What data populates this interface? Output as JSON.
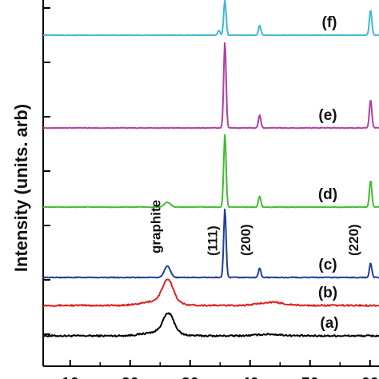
{
  "chart_data": {
    "type": "line",
    "title": "",
    "ylabel": "Intensity (units. arb)",
    "xlabel": "",
    "xlim": [
      5.5,
      61.5
    ],
    "x_ticks": [
      10,
      20,
      30,
      40,
      50,
      60
    ],
    "x_tick_labels": [
      "10",
      "20",
      "30",
      "40",
      "50",
      "60"
    ],
    "grid": false,
    "series": [
      {
        "name": "(a)",
        "color": "#000000",
        "noise": 2,
        "peaks": [
          {
            "x": 26.4,
            "h": 24,
            "w": 0.9
          },
          {
            "x": 25.0,
            "h": 5,
            "w": 2.5
          },
          {
            "x": 43.2,
            "h": 2,
            "w": 2.0
          }
        ]
      },
      {
        "name": "(b)",
        "color": "#e02020",
        "noise": 1.8,
        "peaks": [
          {
            "x": 26.3,
            "h": 27,
            "w": 0.9
          },
          {
            "x": 25.0,
            "h": 6,
            "w": 2.5
          },
          {
            "x": 43.5,
            "h": 4,
            "w": 2.0
          }
        ]
      },
      {
        "name": "(c)",
        "color": "#22409a",
        "noise": 1,
        "peaks": [
          {
            "x": 26.2,
            "h": 14,
            "w": 0.5
          },
          {
            "x": 35.8,
            "h": 86,
            "w": 0.2
          },
          {
            "x": 41.6,
            "h": 12,
            "w": 0.2
          },
          {
            "x": 60.1,
            "h": 18,
            "w": 0.2
          }
        ]
      },
      {
        "name": "(d)",
        "color": "#44bb33",
        "noise": 0.8,
        "peaks": [
          {
            "x": 26.2,
            "h": 6,
            "w": 0.5
          },
          {
            "x": 35.8,
            "h": 92,
            "w": 0.2
          },
          {
            "x": 41.6,
            "h": 14,
            "w": 0.2
          },
          {
            "x": 60.1,
            "h": 34,
            "w": 0.2
          }
        ]
      },
      {
        "name": "(e)",
        "color": "#b040a8",
        "noise": 0.8,
        "peaks": [
          {
            "x": 35.8,
            "h": 108,
            "w": 0.2
          },
          {
            "x": 41.6,
            "h": 16,
            "w": 0.2
          },
          {
            "x": 60.1,
            "h": 36,
            "w": 0.2
          }
        ]
      },
      {
        "name": "(f)",
        "color": "#40b8d8",
        "noise": 0.6,
        "peaks": [
          {
            "x": 35.8,
            "h": 44,
            "w": 0.2
          },
          {
            "x": 34.8,
            "h": 6,
            "w": 0.2
          },
          {
            "x": 41.6,
            "h": 12,
            "w": 0.2
          },
          {
            "x": 60.1,
            "h": 32,
            "w": 0.2
          }
        ]
      }
    ],
    "annotations": [
      {
        "text": "graphite",
        "x": 25.0
      },
      {
        "text": "(111)",
        "x": 34.5
      },
      {
        "text": "(200)",
        "x": 40.0
      },
      {
        "text": "(220)",
        "x": 58.0
      }
    ]
  }
}
